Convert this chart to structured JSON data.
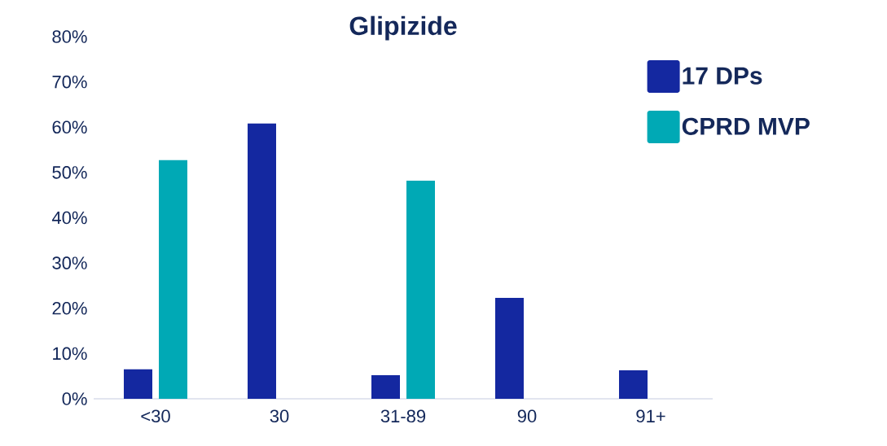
{
  "chart_data": {
    "type": "bar",
    "title": "Glipizide",
    "categories": [
      "<30",
      "30",
      "31-89",
      "90",
      "91+"
    ],
    "series": [
      {
        "name": "17 DPs",
        "color": "#1428a0",
        "values": [
          6.5,
          60.8,
          5.2,
          22.3,
          6.3
        ]
      },
      {
        "name": "CPRD MVP",
        "color": "#00a9b5",
        "values": [
          52.7,
          null,
          48.2,
          null,
          null
        ]
      }
    ],
    "ylim": [
      0,
      80
    ],
    "yticks": [
      {
        "value": 0,
        "label": "0%"
      },
      {
        "value": 10,
        "label": "10%"
      },
      {
        "value": 20,
        "label": "20%"
      },
      {
        "value": 30,
        "label": "30%"
      },
      {
        "value": 40,
        "label": "40%"
      },
      {
        "value": 50,
        "label": "50%"
      },
      {
        "value": 60,
        "label": "60%"
      },
      {
        "value": 70,
        "label": "70%"
      },
      {
        "value": 80,
        "label": "80%"
      }
    ],
    "legend": "top right"
  }
}
